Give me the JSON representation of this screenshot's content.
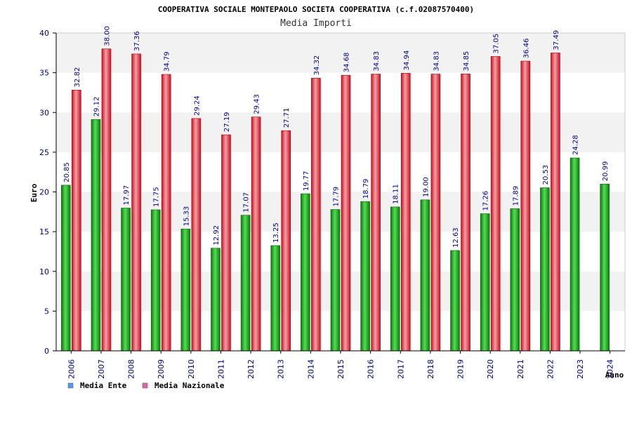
{
  "chart_data": {
    "type": "bar",
    "title": "COOPERATIVA SOCIALE MONTEPAOLO SOCIETA COOPERATIVA (c.f.02087570400)",
    "subtitle": "Media Importi",
    "xlabel": "Anno",
    "ylabel": "Euro",
    "ylim": [
      0,
      40
    ],
    "yticks": [
      0,
      5,
      10,
      15,
      20,
      25,
      30,
      35,
      40
    ],
    "categories": [
      "2006",
      "2007",
      "2008",
      "2009",
      "2010",
      "2011",
      "2012",
      "2013",
      "2014",
      "2015",
      "2016",
      "2017",
      "2018",
      "2019",
      "2020",
      "2021",
      "2022",
      "2023",
      "2024"
    ],
    "series": [
      {
        "name": "Media Ente",
        "color": "#22aa22",
        "legend_color": "#5599ee",
        "values": [
          20.85,
          29.12,
          17.97,
          17.75,
          15.33,
          12.92,
          17.07,
          13.25,
          19.77,
          17.79,
          18.79,
          18.11,
          19.0,
          12.63,
          17.26,
          17.89,
          20.53,
          24.28,
          20.99
        ],
        "labels": [
          "20.85",
          "29.12",
          "17.97",
          "17.75",
          "15.33",
          "12.92",
          "17.07",
          "13.25",
          "19.77",
          "17.79",
          "18.79",
          "18.11",
          "19.00",
          "12.63",
          "17.26",
          "17.89",
          "20.53",
          "24.28",
          "20.99"
        ]
      },
      {
        "name": "Media Nazionale",
        "color": "#e02030",
        "legend_color": "#dd66aa",
        "values": [
          32.82,
          38.0,
          37.36,
          34.79,
          29.24,
          27.19,
          29.43,
          27.71,
          34.32,
          34.68,
          34.83,
          34.94,
          34.83,
          34.85,
          37.05,
          36.46,
          37.49,
          null,
          null
        ],
        "labels": [
          "32.82",
          "38.00",
          "37.36",
          "34.79",
          "29.24",
          "27.19",
          "29.43",
          "27.71",
          "34.32",
          "34.68",
          "34.83",
          "34.94",
          "34.83",
          "34.85",
          "37.05",
          "36.46",
          "37.49",
          null,
          null
        ]
      }
    ]
  }
}
